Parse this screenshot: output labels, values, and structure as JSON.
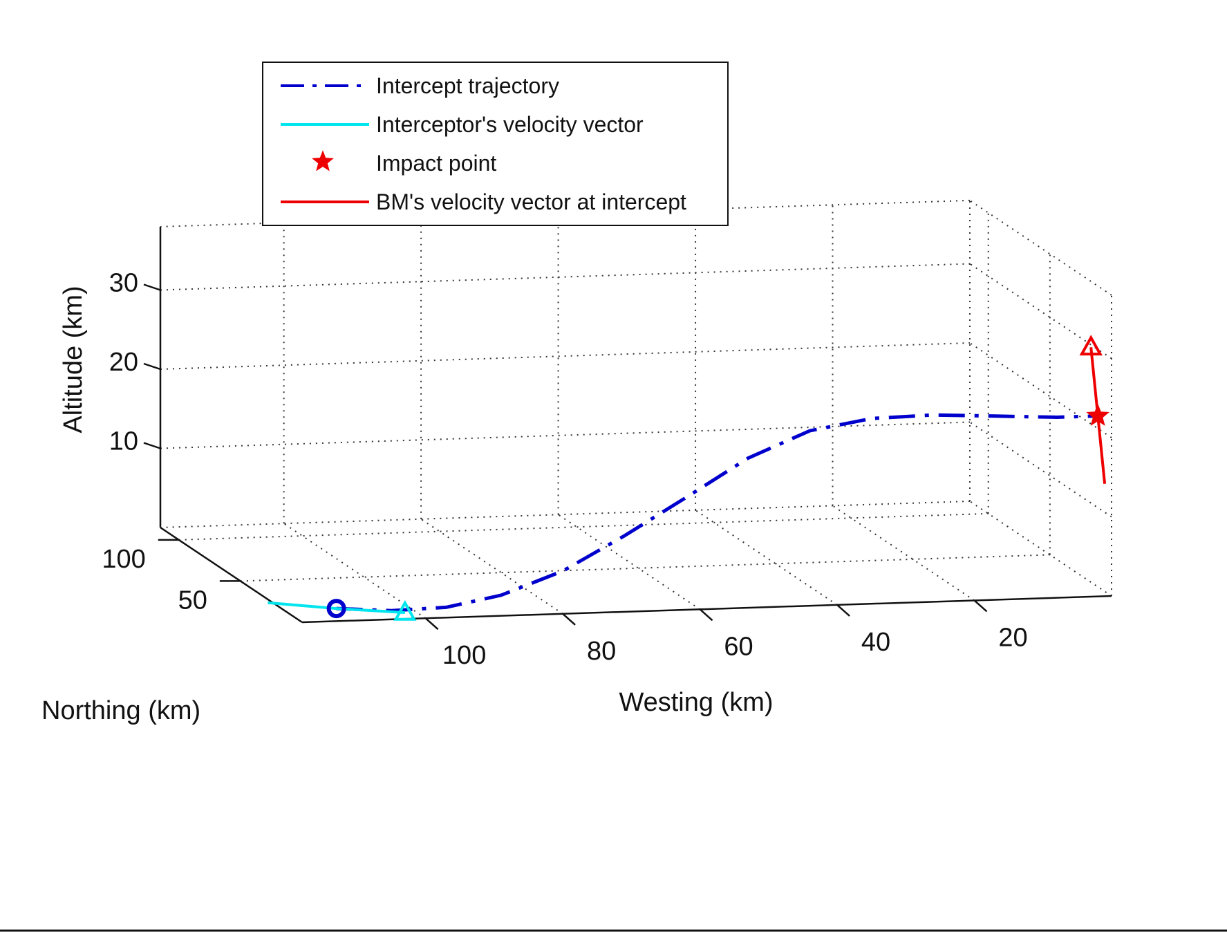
{
  "chart_data": {
    "type": "line",
    "projection": "3d",
    "xlabel": "Westing (km)",
    "ylabel": "Northing (km)",
    "zlabel": "Altitude (km)",
    "x_ticks": [
      100,
      80,
      60,
      40,
      20
    ],
    "y_ticks": [
      100,
      50
    ],
    "z_ticks": [
      10,
      20,
      30
    ],
    "xlim": [
      0,
      118
    ],
    "ylim": [
      0,
      115
    ],
    "zlim": [
      0,
      38
    ],
    "grid": true,
    "legend_position": "top-left",
    "legend": [
      {
        "label": "Intercept trajectory",
        "style": "dashdot",
        "color": "#0000cc"
      },
      {
        "label": "Interceptor's velocity vector",
        "style": "solid",
        "color": "#00e5ee"
      },
      {
        "label": "Impact point",
        "style": "star",
        "color": "#ee0000"
      },
      {
        "label": "BM's velocity vector at intercept",
        "style": "solid",
        "color": "#ee0000"
      }
    ],
    "series": [
      {
        "name": "Intercept trajectory",
        "color": "#0000cc",
        "points": [
          {
            "westing": 113,
            "altitude": 1.6
          },
          {
            "westing": 105,
            "altitude": 1.1
          },
          {
            "westing": 97,
            "altitude": 1.3
          },
          {
            "westing": 89,
            "altitude": 2.6
          },
          {
            "westing": 80,
            "altitude": 5.4
          },
          {
            "westing": 71,
            "altitude": 9.6
          },
          {
            "westing": 62,
            "altitude": 14.2
          },
          {
            "westing": 53,
            "altitude": 18.9
          },
          {
            "westing": 44,
            "altitude": 22.1
          },
          {
            "westing": 35,
            "altitude": 23.4
          },
          {
            "westing": 26,
            "altitude": 23.6
          },
          {
            "westing": 17,
            "altitude": 23.2
          },
          {
            "westing": 8,
            "altitude": 22.8
          },
          {
            "westing": 2,
            "altitude": 22.8
          }
        ]
      },
      {
        "name": "Interceptor's velocity vector",
        "color": "#00e5ee",
        "points": [
          {
            "westing": 123,
            "altitude": 2.6
          },
          {
            "westing": 113,
            "altitude": 1.6
          },
          {
            "westing": 103,
            "altitude": 0.8
          }
        ]
      },
      {
        "name": "BM's velocity vector at intercept",
        "color": "#ee0000",
        "points": [
          {
            "westing": 3,
            "altitude": 31.5
          },
          {
            "westing": 2,
            "altitude": 22.8
          },
          {
            "westing": 1,
            "altitude": 14.2
          }
        ]
      }
    ],
    "markers": [
      {
        "kind": "circle",
        "color": "#0000cc",
        "westing": 113,
        "altitude": 1.6
      },
      {
        "kind": "triangle",
        "color": "#00e5ee",
        "westing": 103,
        "altitude": 0.8
      },
      {
        "kind": "star",
        "color": "#ee0000",
        "westing": 2,
        "altitude": 22.8
      },
      {
        "kind": "triangle",
        "color": "#ee0000",
        "westing": 3,
        "altitude": 31.5
      }
    ]
  }
}
